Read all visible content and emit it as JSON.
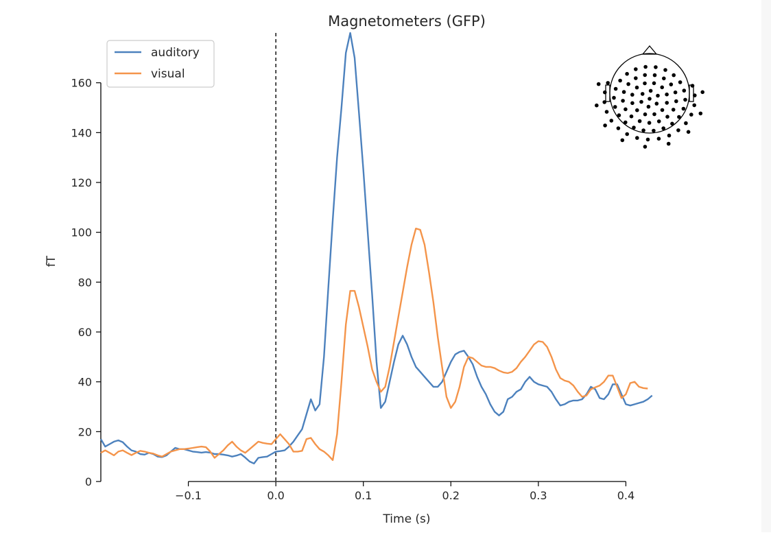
{
  "chart_data": {
    "type": "line",
    "title": "Magnetometers (GFP)",
    "xlabel": "Time (s)",
    "ylabel": "fT",
    "xlim": [
      -0.2,
      0.5
    ],
    "ylim": [
      0,
      180
    ],
    "x_ticks": [
      -0.1,
      0.0,
      0.1,
      0.2,
      0.3,
      0.4
    ],
    "x_tick_labels": [
      "−0.1",
      "0.0",
      "0.1",
      "0.2",
      "0.3",
      "0.4"
    ],
    "y_ticks": [
      0,
      20,
      40,
      60,
      80,
      100,
      120,
      140,
      160
    ],
    "y_tick_labels": [
      "0",
      "20",
      "40",
      "60",
      "80",
      "100",
      "120",
      "140",
      "160"
    ],
    "legend_position": "top-left",
    "grid": false,
    "stimulus_onset_line": 0.0,
    "inset": "sensor-layout-head-topomap",
    "series": [
      {
        "name": "auditory",
        "color": "#4c81bd",
        "points": [
          [
            -0.2,
            17
          ],
          [
            -0.195,
            14
          ],
          [
            -0.19,
            15
          ],
          [
            -0.185,
            16
          ],
          [
            -0.18,
            16.5
          ],
          [
            -0.175,
            15.8
          ],
          [
            -0.17,
            14
          ],
          [
            -0.165,
            12.5
          ],
          [
            -0.16,
            12
          ],
          [
            -0.155,
            11
          ],
          [
            -0.15,
            10.8
          ],
          [
            -0.145,
            11.5
          ],
          [
            -0.14,
            11
          ],
          [
            -0.135,
            10
          ],
          [
            -0.13,
            9.8
          ],
          [
            -0.125,
            10.5
          ],
          [
            -0.12,
            12
          ],
          [
            -0.115,
            13.5
          ],
          [
            -0.11,
            13
          ],
          [
            -0.105,
            13
          ],
          [
            -0.1,
            12.5
          ],
          [
            -0.095,
            12
          ],
          [
            -0.09,
            11.8
          ],
          [
            -0.085,
            11.6
          ],
          [
            -0.08,
            11.8
          ],
          [
            -0.075,
            11.6
          ],
          [
            -0.07,
            11
          ],
          [
            -0.065,
            11
          ],
          [
            -0.06,
            10.8
          ],
          [
            -0.055,
            10.5
          ],
          [
            -0.05,
            10
          ],
          [
            -0.045,
            10.4
          ],
          [
            -0.04,
            11
          ],
          [
            -0.035,
            9.6
          ],
          [
            -0.03,
            8
          ],
          [
            -0.025,
            7.2
          ],
          [
            -0.02,
            9.5
          ],
          [
            -0.015,
            9.8
          ],
          [
            -0.01,
            10
          ],
          [
            -0.005,
            11
          ],
          [
            0.0,
            12
          ],
          [
            0.005,
            12.2
          ],
          [
            0.01,
            12.5
          ],
          [
            0.015,
            14
          ],
          [
            0.02,
            16
          ],
          [
            0.025,
            18.5
          ],
          [
            0.03,
            21
          ],
          [
            0.035,
            27
          ],
          [
            0.04,
            33
          ],
          [
            0.045,
            28.5
          ],
          [
            0.05,
            31
          ],
          [
            0.055,
            50
          ],
          [
            0.06,
            78
          ],
          [
            0.065,
            105
          ],
          [
            0.07,
            130
          ],
          [
            0.075,
            150
          ],
          [
            0.08,
            172
          ],
          [
            0.085,
            180
          ],
          [
            0.09,
            170
          ],
          [
            0.095,
            148
          ],
          [
            0.1,
            125
          ],
          [
            0.105,
            100
          ],
          [
            0.11,
            75
          ],
          [
            0.115,
            48
          ],
          [
            0.12,
            29.5
          ],
          [
            0.125,
            32
          ],
          [
            0.13,
            40
          ],
          [
            0.135,
            48
          ],
          [
            0.14,
            55
          ],
          [
            0.145,
            58.5
          ],
          [
            0.15,
            55
          ],
          [
            0.155,
            50
          ],
          [
            0.16,
            46
          ],
          [
            0.165,
            44
          ],
          [
            0.17,
            42
          ],
          [
            0.175,
            40
          ],
          [
            0.18,
            38
          ],
          [
            0.185,
            38
          ],
          [
            0.19,
            40
          ],
          [
            0.195,
            44
          ],
          [
            0.2,
            48
          ],
          [
            0.205,
            51
          ],
          [
            0.21,
            52
          ],
          [
            0.215,
            52.5
          ],
          [
            0.22,
            50
          ],
          [
            0.225,
            47
          ],
          [
            0.23,
            42
          ],
          [
            0.235,
            38
          ],
          [
            0.24,
            35
          ],
          [
            0.245,
            31
          ],
          [
            0.25,
            28
          ],
          [
            0.255,
            26.5
          ],
          [
            0.26,
            28
          ],
          [
            0.265,
            33
          ],
          [
            0.27,
            34
          ],
          [
            0.275,
            36
          ],
          [
            0.28,
            37
          ],
          [
            0.285,
            40
          ],
          [
            0.29,
            42
          ],
          [
            0.295,
            40
          ],
          [
            0.3,
            39
          ],
          [
            0.305,
            38.5
          ],
          [
            0.31,
            38
          ],
          [
            0.315,
            36
          ],
          [
            0.32,
            33
          ],
          [
            0.325,
            30.5
          ],
          [
            0.33,
            31
          ],
          [
            0.335,
            32
          ],
          [
            0.34,
            32.5
          ],
          [
            0.345,
            32.5
          ],
          [
            0.35,
            33
          ],
          [
            0.355,
            35
          ],
          [
            0.36,
            38
          ],
          [
            0.365,
            37
          ],
          [
            0.37,
            33.5
          ],
          [
            0.375,
            33
          ],
          [
            0.38,
            35
          ],
          [
            0.385,
            39
          ],
          [
            0.39,
            39
          ],
          [
            0.395,
            35
          ],
          [
            0.4,
            31
          ],
          [
            0.405,
            30.5
          ],
          [
            0.41,
            31
          ],
          [
            0.415,
            31.5
          ],
          [
            0.42,
            32
          ],
          [
            0.425,
            33
          ],
          [
            0.43,
            34.5
          ]
        ]
      },
      {
        "name": "visual",
        "color": "#f4944a",
        "points": [
          [
            -0.2,
            11.5
          ],
          [
            -0.195,
            12.5
          ],
          [
            -0.19,
            11.5
          ],
          [
            -0.185,
            10.5
          ],
          [
            -0.18,
            12
          ],
          [
            -0.175,
            12.5
          ],
          [
            -0.17,
            11.5
          ],
          [
            -0.165,
            10.6
          ],
          [
            -0.16,
            11.5
          ],
          [
            -0.155,
            12.3
          ],
          [
            -0.15,
            12
          ],
          [
            -0.145,
            11.5
          ],
          [
            -0.14,
            11.2
          ],
          [
            -0.135,
            10.5
          ],
          [
            -0.13,
            10
          ],
          [
            -0.125,
            11
          ],
          [
            -0.12,
            12
          ],
          [
            -0.115,
            12.5
          ],
          [
            -0.11,
            13
          ],
          [
            -0.105,
            13
          ],
          [
            -0.1,
            13.2
          ],
          [
            -0.095,
            13.5
          ],
          [
            -0.09,
            13.8
          ],
          [
            -0.085,
            14
          ],
          [
            -0.08,
            13.8
          ],
          [
            -0.075,
            12
          ],
          [
            -0.07,
            9.5
          ],
          [
            -0.065,
            11
          ],
          [
            -0.06,
            12.5
          ],
          [
            -0.055,
            14.5
          ],
          [
            -0.05,
            16
          ],
          [
            -0.045,
            14
          ],
          [
            -0.04,
            12.5
          ],
          [
            -0.035,
            11.5
          ],
          [
            -0.03,
            13
          ],
          [
            -0.025,
            14.5
          ],
          [
            -0.02,
            16
          ],
          [
            -0.015,
            15.5
          ],
          [
            -0.01,
            15.2
          ],
          [
            -0.005,
            15
          ],
          [
            0.0,
            17
          ],
          [
            0.005,
            19
          ],
          [
            0.01,
            17
          ],
          [
            0.015,
            15
          ],
          [
            0.02,
            12
          ],
          [
            0.025,
            12
          ],
          [
            0.03,
            12.3
          ],
          [
            0.035,
            17
          ],
          [
            0.04,
            17.5
          ],
          [
            0.045,
            15
          ],
          [
            0.05,
            13
          ],
          [
            0.055,
            12
          ],
          [
            0.06,
            10.5
          ],
          [
            0.065,
            8.6
          ],
          [
            0.07,
            19
          ],
          [
            0.075,
            40
          ],
          [
            0.08,
            63
          ],
          [
            0.085,
            76.5
          ],
          [
            0.09,
            76.5
          ],
          [
            0.095,
            70
          ],
          [
            0.1,
            62
          ],
          [
            0.105,
            54
          ],
          [
            0.11,
            45
          ],
          [
            0.115,
            40
          ],
          [
            0.12,
            36
          ],
          [
            0.125,
            38
          ],
          [
            0.13,
            46
          ],
          [
            0.135,
            56
          ],
          [
            0.14,
            66
          ],
          [
            0.145,
            76
          ],
          [
            0.15,
            86
          ],
          [
            0.155,
            95
          ],
          [
            0.16,
            101.5
          ],
          [
            0.165,
            101
          ],
          [
            0.17,
            95
          ],
          [
            0.175,
            84
          ],
          [
            0.18,
            72
          ],
          [
            0.185,
            58
          ],
          [
            0.19,
            46
          ],
          [
            0.195,
            34
          ],
          [
            0.2,
            29.5
          ],
          [
            0.205,
            32
          ],
          [
            0.21,
            38
          ],
          [
            0.215,
            46
          ],
          [
            0.22,
            50
          ],
          [
            0.225,
            49.5
          ],
          [
            0.23,
            48
          ],
          [
            0.235,
            46.5
          ],
          [
            0.24,
            46
          ],
          [
            0.245,
            46
          ],
          [
            0.25,
            45.5
          ],
          [
            0.255,
            44.5
          ],
          [
            0.26,
            43.8
          ],
          [
            0.265,
            43.5
          ],
          [
            0.27,
            44
          ],
          [
            0.275,
            45.5
          ],
          [
            0.28,
            48
          ],
          [
            0.285,
            50
          ],
          [
            0.29,
            52.5
          ],
          [
            0.295,
            55
          ],
          [
            0.3,
            56.3
          ],
          [
            0.305,
            56
          ],
          [
            0.31,
            54
          ],
          [
            0.315,
            50
          ],
          [
            0.32,
            45
          ],
          [
            0.325,
            41.5
          ],
          [
            0.33,
            40.5
          ],
          [
            0.335,
            40
          ],
          [
            0.34,
            38.5
          ],
          [
            0.345,
            36
          ],
          [
            0.35,
            34
          ],
          [
            0.355,
            34.5
          ],
          [
            0.36,
            37
          ],
          [
            0.365,
            37.8
          ],
          [
            0.37,
            38.5
          ],
          [
            0.375,
            40
          ],
          [
            0.38,
            42.5
          ],
          [
            0.385,
            42.5
          ],
          [
            0.39,
            38
          ],
          [
            0.395,
            33.5
          ],
          [
            0.4,
            35
          ],
          [
            0.405,
            39.5
          ],
          [
            0.41,
            40
          ],
          [
            0.415,
            38
          ],
          [
            0.42,
            37.5
          ],
          [
            0.425,
            37.3
          ]
        ]
      }
    ]
  }
}
